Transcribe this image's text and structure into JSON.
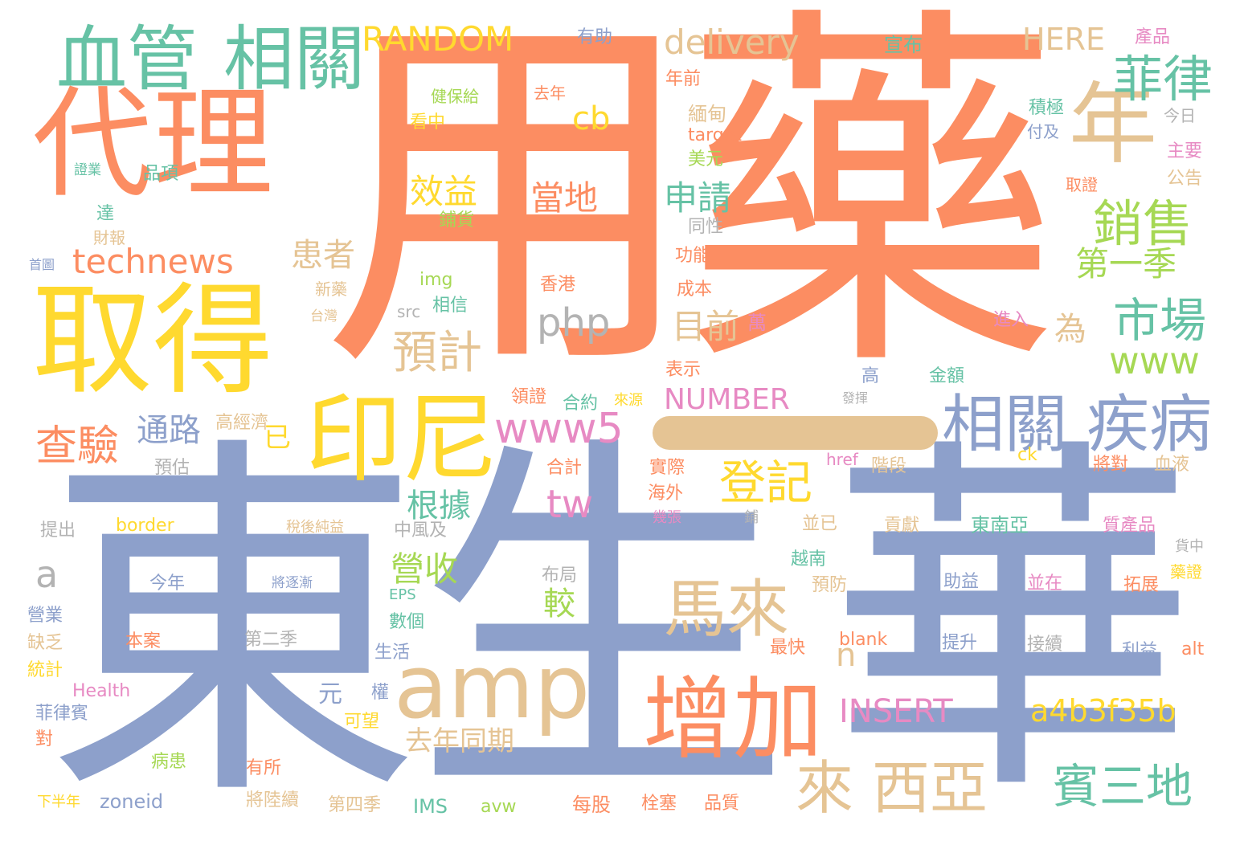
{
  "palette": {
    "orange": "#fc8d62",
    "blue": "#8da0cb",
    "green": "#66c2a5",
    "yellow": "#ffd92f",
    "tan": "#e5c494",
    "lime": "#a6d854",
    "pink": "#e78ac3",
    "gray": "#b3b3b3"
  },
  "words": {
    "yongyao": "用藥",
    "dongsheng": "東生",
    "hua": "華",
    "yi": "一",
    "daili": "代理",
    "qude": "取得",
    "xueguan": "血管",
    "xiangguan1": "相關",
    "xiangguan2": "相關",
    "yinni": "印尼",
    "amp": "amp",
    "zengjia": "增加",
    "malai": "馬來",
    "lai": "來",
    "xiya": "西亞",
    "jibing": "疾病",
    "nian": "年",
    "feilu": "菲律",
    "xiaoshou": "銷售",
    "shichang": "市場",
    "www": "www",
    "binsandi": "賓三地",
    "random": "RANDOM",
    "delivery": "delivery",
    "here": "HERE",
    "technews": "technews",
    "www5": "www5",
    "dengji": "登記",
    "yuji": "預計",
    "chayan": "查驗",
    "tonglu": "通路",
    "xiaoyi": "效益",
    "dangdi": "當地",
    "shenqing": "申請",
    "diyiji": "第一季",
    "huanzhe": "患者",
    "mumian": "目前",
    "php": "php",
    "cb": "cb",
    "tw": "tw",
    "genju": "根據",
    "yingshou": "營收",
    "jiao": "較",
    "number": "NUMBER",
    "insert": "INSERT",
    "a4b": "a4b3f35b",
    "qunian_tongqi": "去年同期",
    "a_letter": "a",
    "n_letter": "n",
    "wei": "為",
    "yi2": "已",
    "youzhu": "有助",
    "xuanbu": "宣布",
    "chanpin": "產品",
    "jianbaogei": "健保給",
    "qunian": "去年",
    "kanzhong": "看中",
    "nianqian": "年前",
    "xidian": "緬甸",
    "target": "target",
    "meiyuan": "美元",
    "jiji": "積極",
    "fuji": "付及",
    "jinri": "今日",
    "zhuyao": "主要",
    "gonggao": "公告",
    "quzheng": "取證",
    "zhengye": "證業",
    "pinxiang": "品項",
    "da": "達",
    "puhuo": "鋪貨",
    "caibao": "財報",
    "tongxing": "同性",
    "shouye": "首圖",
    "gongneng": "功能",
    "xinyao": "新藥",
    "img": "img",
    "xianggang": "香港",
    "chengben": "成本",
    "taiwan": "台灣",
    "src": "src",
    "xiangxin": "相信",
    "wan": "萬",
    "jinru": "進入",
    "biaoshi": "表示",
    "gao": "高",
    "jine": "金額",
    "lingzheng": "領證",
    "heyue": "合約",
    "laiyuan": "來源",
    "fahui": "發揮",
    "gaojingji": "高經濟",
    "yugu": "預估",
    "heji": "合計",
    "shiji": "實際",
    "href": "href",
    "jieduan": "階段",
    "ck": "ck",
    "jiangdui": "將對",
    "xueye": "血液",
    "tichu": "提出",
    "border": "border",
    "shuihou": "稅後純益",
    "zhongfeng": "中風及",
    "haiwai": "海外",
    "jizhang": "幾張",
    "pu": "鋪",
    "bingyi": "並已",
    "gongxian": "貢獻",
    "dongnanya": "東南亞",
    "zhichanpin": "質產品",
    "huozhong": "貨中",
    "jinnian": "今年",
    "jiangzhujian": "將逐漸",
    "buju": "布局",
    "yuenan": "越南",
    "zhuyi": "助益",
    "bingzai": "並在",
    "tuozhan": "拓展",
    "yaozheng": "藥證",
    "yingye": "營業",
    "eps": "EPS",
    "yufang": "預防",
    "shuge": "數個",
    "quefa": "缺乏",
    "benan": "本案",
    "dierji": "第二季",
    "zuikuai": "最快",
    "blank": "blank",
    "tisheng": "提升",
    "jiexu": "接續",
    "liyi": "利益",
    "alt": "alt",
    "tongji": "統計",
    "health": "Health",
    "shenghuo": "生活",
    "yuan": "元",
    "quan": "權",
    "feilubin": "菲律賓",
    "dui": "對",
    "kewang": "可望",
    "bingzhuan": "病患",
    "yousuo": "有所",
    "xiabannian": "下半年",
    "zoneid": "zoneid",
    "jianglu": "將陸續",
    "disiji": "第四季",
    "ims": "IMS",
    "avw": "avw",
    "meigu": "每股",
    "shuansai": "栓塞",
    "pinzhi": "品質"
  }
}
